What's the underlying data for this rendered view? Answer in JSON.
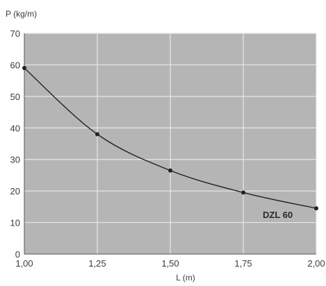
{
  "chart_data": {
    "type": "line",
    "title": "",
    "xlabel": "L (m)",
    "ylabel": "P (kg/m)",
    "x": [
      1.0,
      1.25,
      1.5,
      1.75,
      2.0
    ],
    "series": [
      {
        "name": "DZL 60",
        "values": [
          59,
          38,
          26.5,
          19.5,
          14.5
        ]
      }
    ],
    "xlim": [
      1.0,
      2.0
    ],
    "ylim": [
      0,
      70
    ],
    "xticks": [
      1.0,
      1.25,
      1.5,
      1.75,
      2.0
    ],
    "xtick_labels": [
      "1,00",
      "1,25",
      "1,50",
      "1,75",
      "2,00"
    ],
    "yticks": [
      0,
      10,
      20,
      30,
      40,
      50,
      60,
      70
    ],
    "ytick_labels": [
      "0",
      "10",
      "20",
      "30",
      "40",
      "50",
      "60",
      "70"
    ],
    "grid": true,
    "colors": {
      "plot_background": "#b5b5b5",
      "grid": "#e8e8e8",
      "line": "#222222"
    }
  }
}
